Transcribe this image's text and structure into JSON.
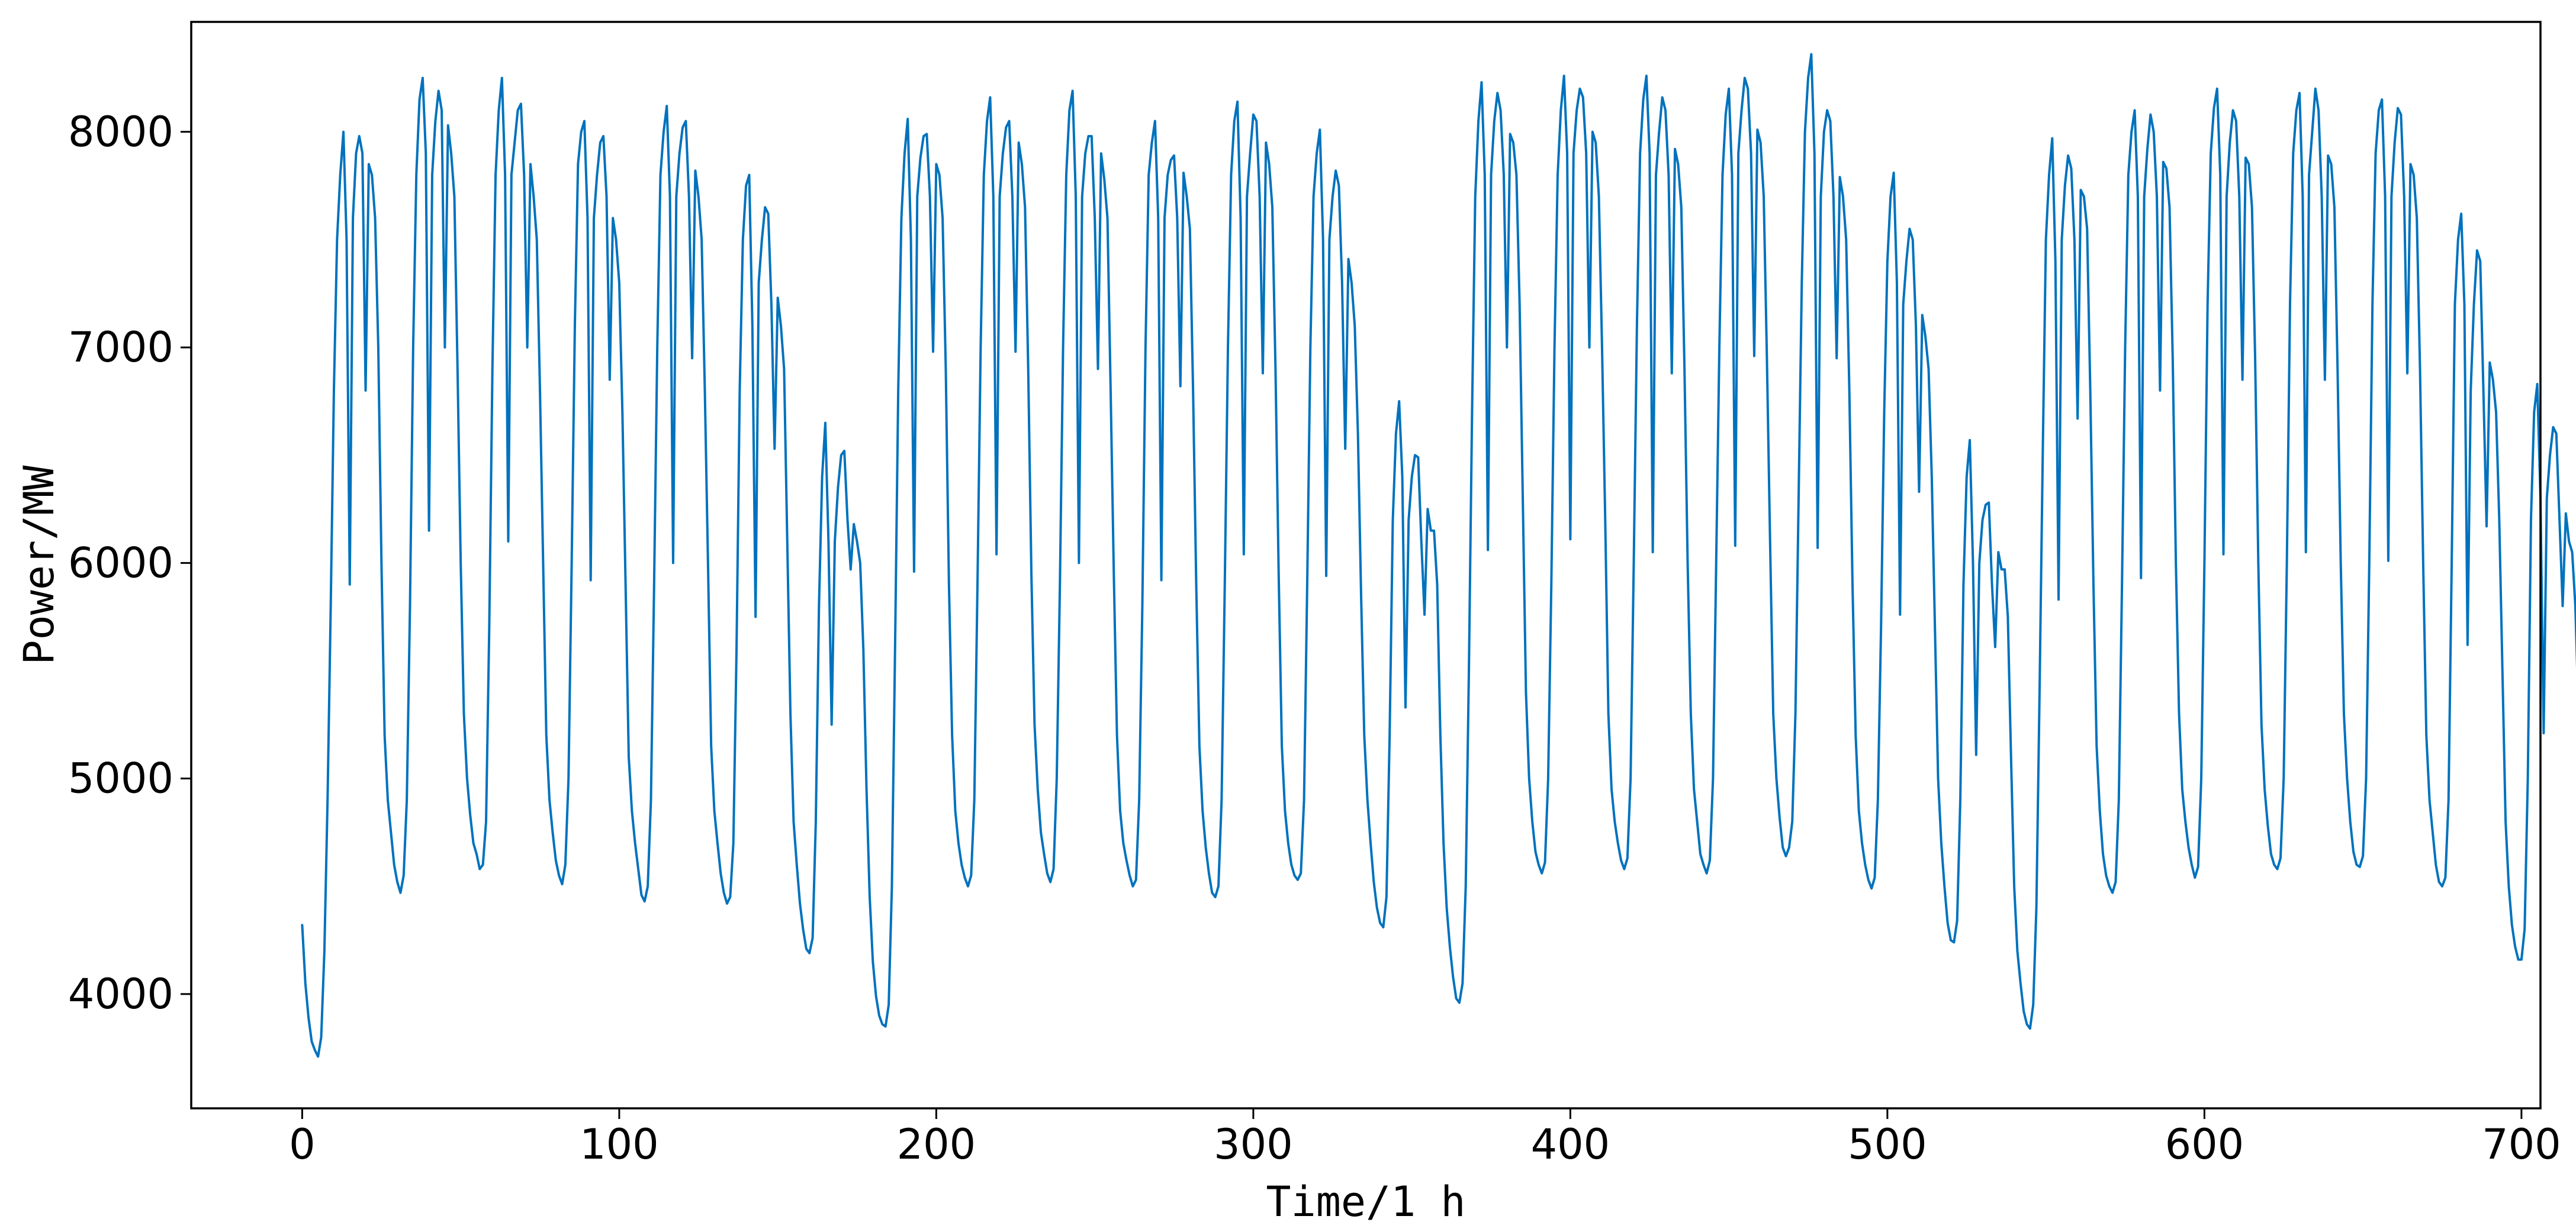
{
  "chart_data": {
    "type": "line",
    "title": "",
    "xlabel": "Time/1 h",
    "ylabel": "Power/MW",
    "xlim": [
      -35,
      706
    ],
    "ylim": [
      3470,
      8510
    ],
    "x_ticks": [
      0,
      100,
      200,
      300,
      400,
      500,
      600,
      700
    ],
    "y_ticks": [
      4000,
      5000,
      6000,
      7000,
      8000
    ],
    "x_tick_labels": [
      "0",
      "100",
      "200",
      "300",
      "400",
      "500",
      "600",
      "700"
    ],
    "y_tick_labels": [
      "4000",
      "5000",
      "6000",
      "7000",
      "8000"
    ],
    "grid": false,
    "legend": "none",
    "line_color": "#0072BD",
    "x": "hourly index starting at 0 (one point per hour)",
    "series": [
      {
        "values": [
          4320,
          4050,
          3890,
          3780,
          3740,
          3710,
          3800,
          4200,
          4900,
          5800,
          6800,
          7500,
          7800,
          8000,
          7500,
          5900,
          7600,
          7900,
          7980,
          7900,
          6800,
          7850,
          7800,
          7600,
          7000,
          6000,
          5200,
          4900,
          4750,
          4600,
          4520,
          4470,
          4550,
          4900,
          5800,
          7000,
          7800,
          8150,
          8250,
          7900,
          6150,
          7800,
          8050,
          8190,
          8100,
          7000,
          8030,
          7900,
          7700,
          6900,
          6000,
          5300,
          5000,
          4830,
          4700,
          4650,
          4580,
          4600,
          4800,
          5700,
          6900,
          7800,
          8100,
          8250,
          7800,
          6100,
          7800,
          7950,
          8100,
          8130,
          7800,
          7000,
          7850,
          7700,
          7500,
          6800,
          6000,
          5200,
          4900,
          4750,
          4620,
          4550,
          4510,
          4600,
          5000,
          6000,
          7100,
          7850,
          8000,
          8050,
          7600,
          5920,
          7600,
          7800,
          7950,
          7980,
          7700,
          6850,
          7600,
          7500,
          7300,
          6700,
          5900,
          5100,
          4850,
          4700,
          4580,
          4460,
          4430,
          4500,
          4900,
          5900,
          7000,
          7800,
          8000,
          8120,
          7700,
          6000,
          7700,
          7900,
          8020,
          8050,
          7700,
          6950,
          7820,
          7700,
          7500,
          6800,
          6000,
          5150,
          4850,
          4700,
          4560,
          4470,
          4420,
          4450,
          4700,
          5600,
          6800,
          7500,
          7750,
          7800,
          7100,
          5750,
          7300,
          7500,
          7650,
          7620,
          7200,
          6530,
          7230,
          7100,
          6900,
          6100,
          5300,
          4800,
          4600,
          4420,
          4300,
          4210,
          4190,
          4260,
          4800,
          5800,
          6400,
          6650,
          6100,
          5250,
          6100,
          6350,
          6500,
          6520,
          6200,
          5970,
          6180,
          6100,
          6000,
          5600,
          4950,
          4450,
          4150,
          3990,
          3900,
          3860,
          3850,
          3950,
          4500,
          5600,
          6800,
          7600,
          7900,
          8060,
          7500,
          5960,
          7700,
          7880,
          7980,
          7990,
          7700,
          6980,
          7850,
          7800,
          7600,
          6900,
          5900,
          5200,
          4850,
          4700,
          4600,
          4540,
          4500,
          4550,
          4900,
          5900,
          7000,
          7800,
          8050,
          8160,
          7700,
          6040,
          7700,
          7900,
          8020,
          8050,
          7700,
          6980,
          7950,
          7850,
          7650,
          6900,
          5950,
          5250,
          4950,
          4750,
          4650,
          4560,
          4520,
          4580,
          5000,
          5900,
          7000,
          7800,
          8100,
          8190,
          7700,
          6000,
          7700,
          7900,
          7980,
          7980,
          7600,
          6900,
          7900,
          7780,
          7600,
          6800,
          5950,
          5200,
          4850,
          4700,
          4620,
          4550,
          4500,
          4530,
          4900,
          5800,
          7000,
          7800,
          7950,
          8050,
          7600,
          5920,
          7600,
          7800,
          7870,
          7890,
          7600,
          6820,
          7810,
          7700,
          7550,
          6800,
          5900,
          5150,
          4850,
          4680,
          4560,
          4470,
          4450,
          4500,
          4900,
          5900,
          7000,
          7800,
          8050,
          8140,
          7600,
          6040,
          7700,
          7900,
          8080,
          8050,
          7700,
          6880,
          7950,
          7850,
          7650,
          6900,
          5950,
          5150,
          4850,
          4700,
          4600,
          4550,
          4530,
          4560,
          4900,
          5900,
          7000,
          7700,
          7900,
          8010,
          7500,
          5940,
          7500,
          7700,
          7820,
          7750,
          7300,
          6530,
          7410,
          7300,
          7100,
          6600,
          5850,
          5200,
          4900,
          4700,
          4520,
          4400,
          4330,
          4310,
          4450,
          5200,
          6200,
          6600,
          6750,
          6400,
          5330,
          6200,
          6400,
          6500,
          6490,
          6100,
          5760,
          6250,
          6150,
          6150,
          5900,
          5200,
          4700,
          4400,
          4220,
          4080,
          3980,
          3960,
          4050,
          4500,
          5500,
          6700,
          7700,
          8050,
          8230,
          7800,
          6060,
          7800,
          8050,
          8180,
          8100,
          7800,
          7000,
          7990,
          7950,
          7800,
          7200,
          6300,
          5400,
          5000,
          4800,
          4660,
          4600,
          4560,
          4610,
          5000,
          5900,
          7000,
          7800,
          8100,
          8260,
          7900,
          6110,
          7900,
          8100,
          8200,
          8160,
          7900,
          7000,
          8000,
          7950,
          7700,
          7000,
          6200,
          5300,
          4950,
          4800,
          4700,
          4620,
          4580,
          4630,
          5000,
          6000,
          7100,
          7900,
          8150,
          8260,
          7900,
          6050,
          7800,
          8000,
          8160,
          8100,
          7800,
          6880,
          7920,
          7850,
          7650,
          6900,
          6000,
          5300,
          4950,
          4800,
          4650,
          4600,
          4560,
          4620,
          5000,
          6000,
          7000,
          7800,
          8080,
          8200,
          7800,
          6080,
          7900,
          8100,
          8250,
          8200,
          7900,
          6960,
          8010,
          7950,
          7700,
          6950,
          6100,
          5300,
          5000,
          4820,
          4680,
          4640,
          4680,
          4800,
          5300,
          6300,
          7300,
          8000,
          8250,
          8360,
          7900,
          6070,
          7700,
          8000,
          8100,
          8050,
          7700,
          6950,
          7790,
          7700,
          7500,
          6800,
          5900,
          5200,
          4850,
          4700,
          4600,
          4530,
          4490,
          4540,
          4900,
          5700,
          6700,
          7400,
          7700,
          7810,
          7300,
          5760,
          7200,
          7400,
          7550,
          7500,
          7100,
          6330,
          7150,
          7050,
          6900,
          6400,
          5700,
          5000,
          4700,
          4500,
          4330,
          4250,
          4240,
          4340,
          4900,
          5900,
          6400,
          6570,
          6000,
          5110,
          6000,
          6200,
          6270,
          6280,
          5900,
          5610,
          6050,
          5970,
          5970,
          5750,
          5100,
          4500,
          4200,
          4050,
          3920,
          3860,
          3840,
          3950,
          4400,
          5400,
          6500,
          7500,
          7800,
          7970,
          7400,
          5830,
          7500,
          7750,
          7890,
          7830,
          7500,
          6670,
          7730,
          7700,
          7550,
          6800,
          5900,
          5150,
          4850,
          4650,
          4550,
          4500,
          4470,
          4520,
          4900,
          5900,
          7000,
          7800,
          8000,
          8100,
          7700,
          5930,
          7700,
          7920,
          8080,
          8000,
          7700,
          6800,
          7860,
          7830,
          7650,
          6950,
          6000,
          5300,
          4950,
          4800,
          4680,
          4600,
          4540,
          4590,
          5000,
          6000,
          7200,
          7900,
          8110,
          8200,
          7800,
          6040,
          7700,
          7950,
          8100,
          8050,
          7700,
          6850,
          7880,
          7850,
          7650,
          6950,
          6000,
          5250,
          4950,
          4780,
          4650,
          4600,
          4580,
          4630,
          5000,
          6000,
          7200,
          7900,
          8100,
          8180,
          7700,
          6050,
          7800,
          8000,
          8200,
          8100,
          7700,
          6850,
          7890,
          7850,
          7650,
          6900,
          6000,
          5300,
          5000,
          4800,
          4660,
          4600,
          4590,
          4640,
          5000,
          6000,
          7200,
          7900,
          8100,
          8150,
          7700,
          6010,
          7700,
          7950,
          8110,
          8080,
          7700,
          6880,
          7850,
          7800,
          7600,
          6900,
          6000,
          5200,
          4900,
          4750,
          4600,
          4520,
          4500,
          4540,
          4900,
          6000,
          7200,
          7500,
          7620,
          7200,
          5620,
          6800,
          7200,
          7450,
          7400,
          6800,
          6170,
          6930,
          6850,
          6700,
          6200,
          5500,
          4800,
          4500,
          4320,
          4220,
          4160,
          4160,
          4300,
          5000,
          6200,
          6700,
          6830,
          6300,
          5210,
          6300,
          6500,
          6630,
          6600,
          6200,
          5800,
          6230,
          6100,
          6050,
          5800,
          5300
        ]
      }
    ]
  }
}
